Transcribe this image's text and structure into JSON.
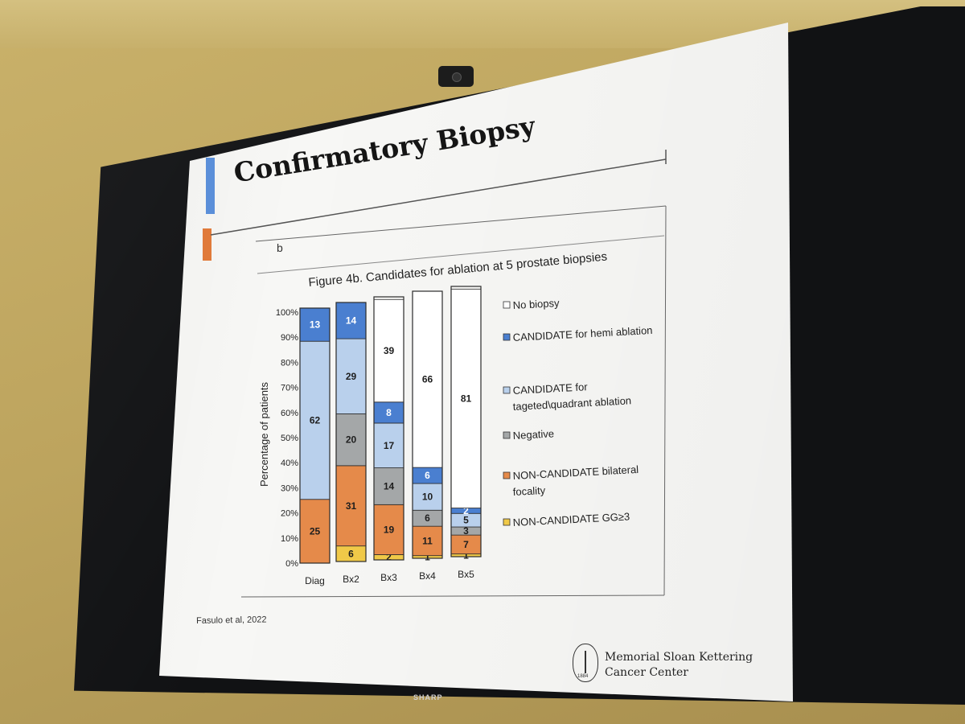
{
  "slide": {
    "title": "Confirmatory Biopsy",
    "panel_label": "b",
    "citation": "Fasulo et al, 2022",
    "logo": {
      "line1": "Memorial Sloan Kettering",
      "line2": "Cancer Center",
      "year": "1884"
    },
    "monitor_brand": "SHARP"
  },
  "colors": {
    "no_biopsy": "#ffffff",
    "hemi": "#4a7fd0",
    "targeted": "#b9d0ec",
    "negative": "#a4a7a8",
    "bilateral": "#e58a4a",
    "gg3": "#f0c948",
    "accent_blue": "#5b8fd9",
    "accent_orange": "#e07a3a"
  },
  "chart_data": {
    "type": "bar",
    "stacked": true,
    "title": "Figure 4b. Candidates for ablation at 5 prostate biopsies",
    "xlabel": "",
    "ylabel": "Percentage of patients",
    "ylim": [
      0,
      100
    ],
    "yticks": [
      "0%",
      "10%",
      "20%",
      "30%",
      "40%",
      "50%",
      "60%",
      "70%",
      "80%",
      "90%",
      "100%"
    ],
    "categories": [
      "Diag",
      "Bx2",
      "Bx3",
      "Bx4",
      "Bx5"
    ],
    "series": [
      {
        "name": "NON-CANDIDATE GG≥3",
        "key": "gg3",
        "values": [
          0,
          6,
          2,
          1,
          1
        ]
      },
      {
        "name": "NON-CANDIDATE bilateral focality",
        "key": "bilateral",
        "values": [
          25,
          31,
          19,
          11,
          7
        ]
      },
      {
        "name": "Negative",
        "key": "negative",
        "values": [
          0,
          20,
          14,
          6,
          3
        ]
      },
      {
        "name": "CANDIDATE for tageted\\quadrant ablation",
        "key": "targeted",
        "values": [
          62,
          29,
          17,
          10,
          5
        ]
      },
      {
        "name": "CANDIDATE for hemi ablation",
        "key": "hemi",
        "values": [
          13,
          14,
          8,
          6,
          2
        ]
      },
      {
        "name": "No biopsy",
        "key": "no_biopsy",
        "values": [
          0,
          0,
          39,
          66,
          81
        ]
      }
    ],
    "legend": [
      {
        "key": "no_biopsy",
        "lines": [
          "No biopsy"
        ]
      },
      {
        "key": "hemi",
        "lines": [
          "CANDIDATE for hemi ablation"
        ]
      },
      {
        "key": "targeted",
        "lines": [
          "CANDIDATE for",
          "tageted\\quadrant ablation"
        ]
      },
      {
        "key": "negative",
        "lines": [
          "Negative"
        ]
      },
      {
        "key": "bilateral",
        "lines": [
          "NON-CANDIDATE bilateral",
          "focality"
        ]
      },
      {
        "key": "gg3",
        "lines": [
          "NON-CANDIDATE GG≥3"
        ]
      }
    ],
    "legend_position": "right"
  }
}
